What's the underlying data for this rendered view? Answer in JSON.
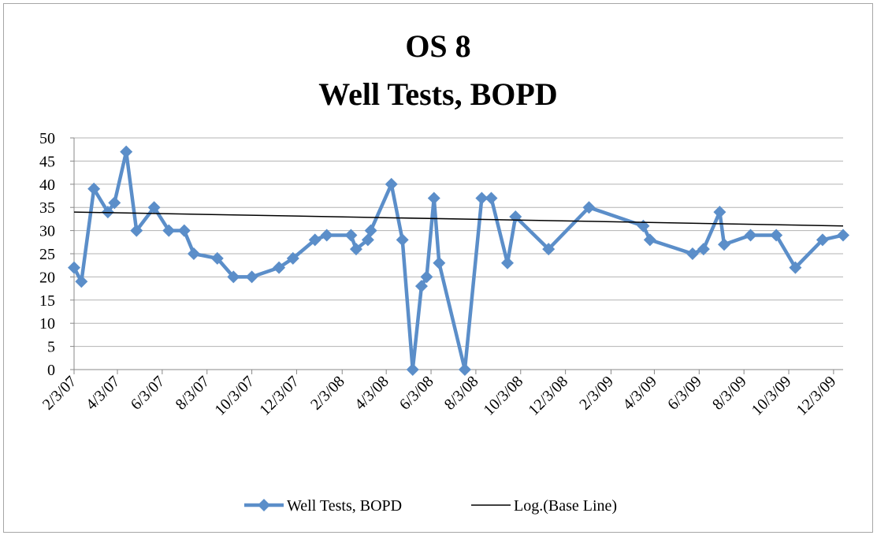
{
  "chart_data": {
    "type": "line",
    "title": "OS 8",
    "subtitle": "Well Tests, BOPD",
    "xlim": [
      "2/3/07",
      "12/16/09"
    ],
    "xticks": [
      "2/3/07",
      "4/3/07",
      "6/3/07",
      "8/3/07",
      "10/3/07",
      "12/3/07",
      "2/3/08",
      "4/3/08",
      "6/3/08",
      "8/3/08",
      "10/3/08",
      "12/3/08",
      "2/3/09",
      "4/3/09",
      "6/3/09",
      "8/3/09",
      "10/3/09",
      "12/3/09"
    ],
    "ylim": [
      0,
      50
    ],
    "yticks": [
      0,
      5,
      10,
      15,
      20,
      25,
      30,
      35,
      40,
      45,
      50
    ],
    "grid": true,
    "legend": "bottom",
    "series": [
      {
        "name": "Well Tests, BOPD",
        "color": "#5b8ec9",
        "marker": "diamond",
        "x": [
          "2/3/07",
          "2/13/07",
          "3/2/07",
          "3/21/07",
          "3/30/07",
          "4/15/07",
          "4/29/07",
          "5/23/07",
          "6/12/07",
          "7/3/07",
          "7/16/07",
          "8/17/07",
          "9/8/07",
          "10/3/07",
          "11/9/07",
          "11/28/07",
          "12/28/07",
          "1/13/08",
          "2/15/08",
          "2/22/08",
          "3/9/08",
          "3/13/08",
          "4/10/08",
          "4/25/08",
          "5/9/08",
          "5/21/08",
          "5/28/08",
          "6/7/08",
          "6/14/08",
          "7/19/08",
          "8/11/08",
          "8/24/08",
          "9/15/08",
          "9/26/08",
          "11/10/08",
          "1/4/09",
          "3/19/09",
          "3/28/09",
          "5/25/09",
          "6/9/09",
          "7/1/09",
          "7/7/09",
          "8/12/09",
          "9/16/09",
          "10/12/09",
          "11/18/09",
          "12/16/09"
        ],
        "values": [
          22,
          19,
          39,
          34,
          36,
          47,
          30,
          35,
          30,
          30,
          25,
          24,
          20,
          20,
          22,
          24,
          28,
          29,
          29,
          26,
          28,
          30,
          40,
          28,
          0,
          18,
          20,
          37,
          23,
          0,
          37,
          37,
          23,
          33,
          26,
          35,
          31,
          28,
          25,
          26,
          34,
          27,
          29,
          29,
          22,
          28,
          29
        ]
      },
      {
        "name": "Log.(Base Line)",
        "color": "#000000",
        "x": [
          "2/3/07",
          "12/16/09"
        ],
        "values": [
          34,
          31
        ]
      }
    ]
  }
}
